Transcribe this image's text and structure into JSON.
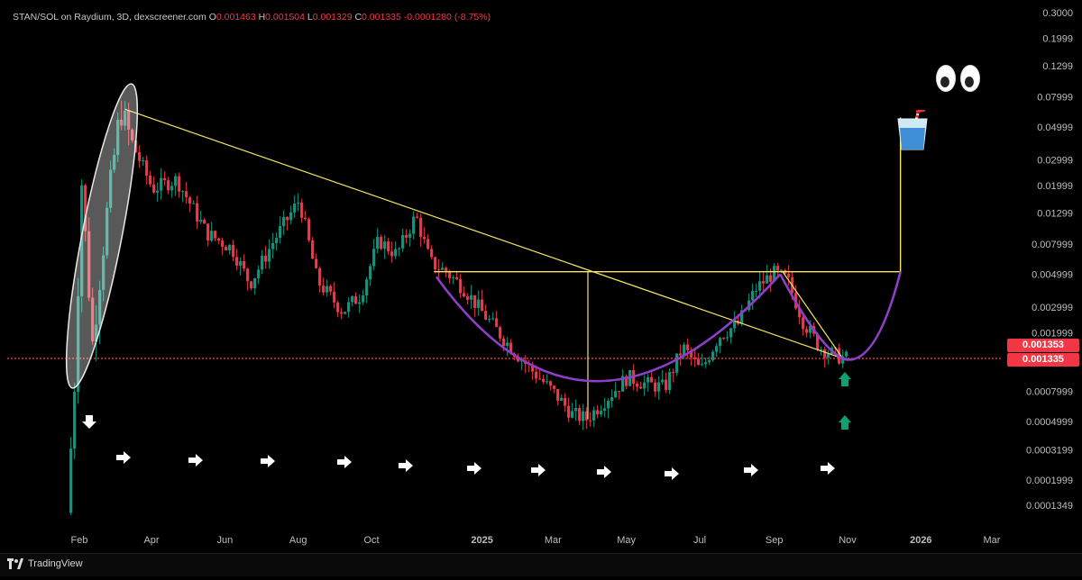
{
  "header": {
    "title": "STAN/SOL on Raydium, 3D, dexscreener.com",
    "open_label": "O",
    "open": "0.001463",
    "high_label": "H",
    "high": "0.001504",
    "low_label": "L",
    "low": "0.001329",
    "close_label": "C",
    "close": "0.001335",
    "change": "-0.0001280 (-8.75%)"
  },
  "footer": {
    "brand": "TradingView"
  },
  "colors": {
    "background": "#000000",
    "up": "#089981",
    "down": "#f23645",
    "annotation_yellow": "#f5e663",
    "cup_purple": "#8e3fc8",
    "support_red": "#f23645",
    "arrow_green": "#0e9f73"
  },
  "chart_data": {
    "type": "candlestick",
    "y_scale": "log",
    "y_ticks": [
      "0.3000",
      "0.1999",
      "0.1299",
      "0.07999",
      "0.04999",
      "0.02999",
      "0.01999",
      "0.01299",
      "0.007999",
      "0.004999",
      "0.002999",
      "0.001999",
      "0.001353",
      "0.001335",
      "0.0007999",
      "0.0004999",
      "0.0003199",
      "0.0001999",
      "0.0001349"
    ],
    "x_ticks": [
      "Feb",
      "Apr",
      "Jun",
      "Aug",
      "Oct",
      "2025",
      "Mar",
      "May",
      "Jul",
      "Sep",
      "Nov",
      "2026",
      "Mar"
    ],
    "price_labels": [
      {
        "text": "0.001353",
        "value": 0.001353
      },
      {
        "text": "0.001335",
        "value": 0.001335
      }
    ],
    "support_level": 0.00134,
    "series": [
      {
        "x": "2024-01-25",
        "y": 0.00012
      },
      {
        "x": "2024-01-31",
        "y": 0.0009
      },
      {
        "x": "2024-02-06",
        "y": 0.021
      },
      {
        "x": "2024-02-15",
        "y": 0.0017
      },
      {
        "x": "2024-02-27",
        "y": 0.013
      },
      {
        "x": "2024-03-09",
        "y": 0.066
      },
      {
        "x": "2024-03-20",
        "y": 0.037
      },
      {
        "x": "2024-04-05",
        "y": 0.019
      },
      {
        "x": "2024-04-25",
        "y": 0.022
      },
      {
        "x": "2024-05-20",
        "y": 0.0095
      },
      {
        "x": "2024-06-10",
        "y": 0.0075
      },
      {
        "x": "2024-06-25",
        "y": 0.0043
      },
      {
        "x": "2024-07-15",
        "y": 0.0085
      },
      {
        "x": "2024-08-05",
        "y": 0.016
      },
      {
        "x": "2024-08-20",
        "y": 0.0045
      },
      {
        "x": "2024-09-10",
        "y": 0.0028
      },
      {
        "x": "2024-09-25",
        "y": 0.0036
      },
      {
        "x": "2024-10-10",
        "y": 0.0085
      },
      {
        "x": "2024-10-25",
        "y": 0.0068
      },
      {
        "x": "2024-11-10",
        "y": 0.0125
      },
      {
        "x": "2024-11-22",
        "y": 0.006
      },
      {
        "x": "2024-12-05",
        "y": 0.0052
      },
      {
        "x": "2024-12-20",
        "y": 0.004
      },
      {
        "x": "2025-01-05",
        "y": 0.0027
      },
      {
        "x": "2025-01-25",
        "y": 0.0017
      },
      {
        "x": "2025-02-15",
        "y": 0.0011
      },
      {
        "x": "2025-03-05",
        "y": 0.00078
      },
      {
        "x": "2025-03-20",
        "y": 0.00056
      },
      {
        "x": "2025-04-01",
        "y": 0.00052
      },
      {
        "x": "2025-04-20",
        "y": 0.00075
      },
      {
        "x": "2025-05-05",
        "y": 0.001
      },
      {
        "x": "2025-05-20",
        "y": 0.0009
      },
      {
        "x": "2025-06-05",
        "y": 0.00085
      },
      {
        "x": "2025-06-20",
        "y": 0.0016
      },
      {
        "x": "2025-07-05",
        "y": 0.0011
      },
      {
        "x": "2025-07-20",
        "y": 0.0019
      },
      {
        "x": "2025-08-05",
        "y": 0.0023
      },
      {
        "x": "2025-08-20",
        "y": 0.004
      },
      {
        "x": "2025-09-03",
        "y": 0.0051
      },
      {
        "x": "2025-09-15",
        "y": 0.0046
      },
      {
        "x": "2025-09-28",
        "y": 0.0024
      },
      {
        "x": "2025-10-12",
        "y": 0.0016
      },
      {
        "x": "2025-10-25",
        "y": 0.0014
      },
      {
        "x": "2025-11-02",
        "y": 0.00134
      }
    ]
  }
}
